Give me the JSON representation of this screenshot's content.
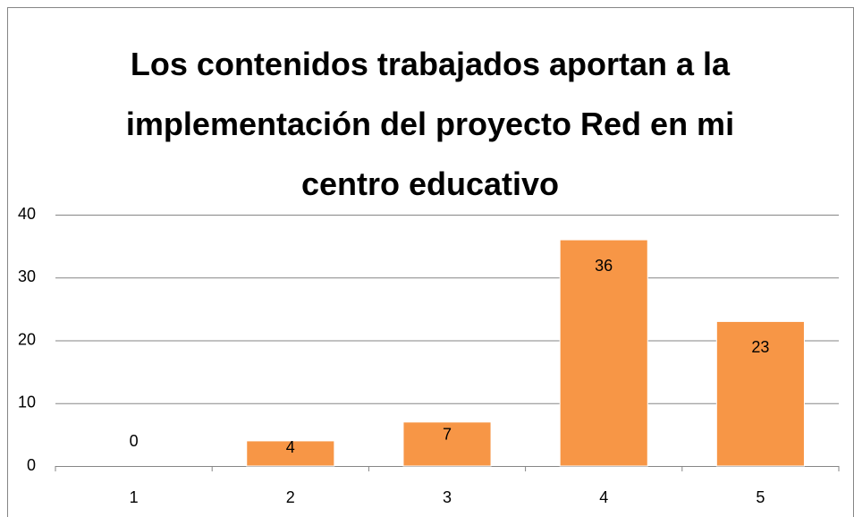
{
  "chart_data": {
    "type": "bar",
    "title": "Los contenidos trabajados aportan a la implementación del proyecto Red en mi centro educativo",
    "categories": [
      "1",
      "2",
      "3",
      "4",
      "5"
    ],
    "values": [
      0,
      4,
      7,
      36,
      23
    ],
    "color": "#f79646",
    "ylim": [
      0,
      40
    ],
    "yticks": [
      0,
      10,
      20,
      30,
      40
    ],
    "grid": true
  }
}
